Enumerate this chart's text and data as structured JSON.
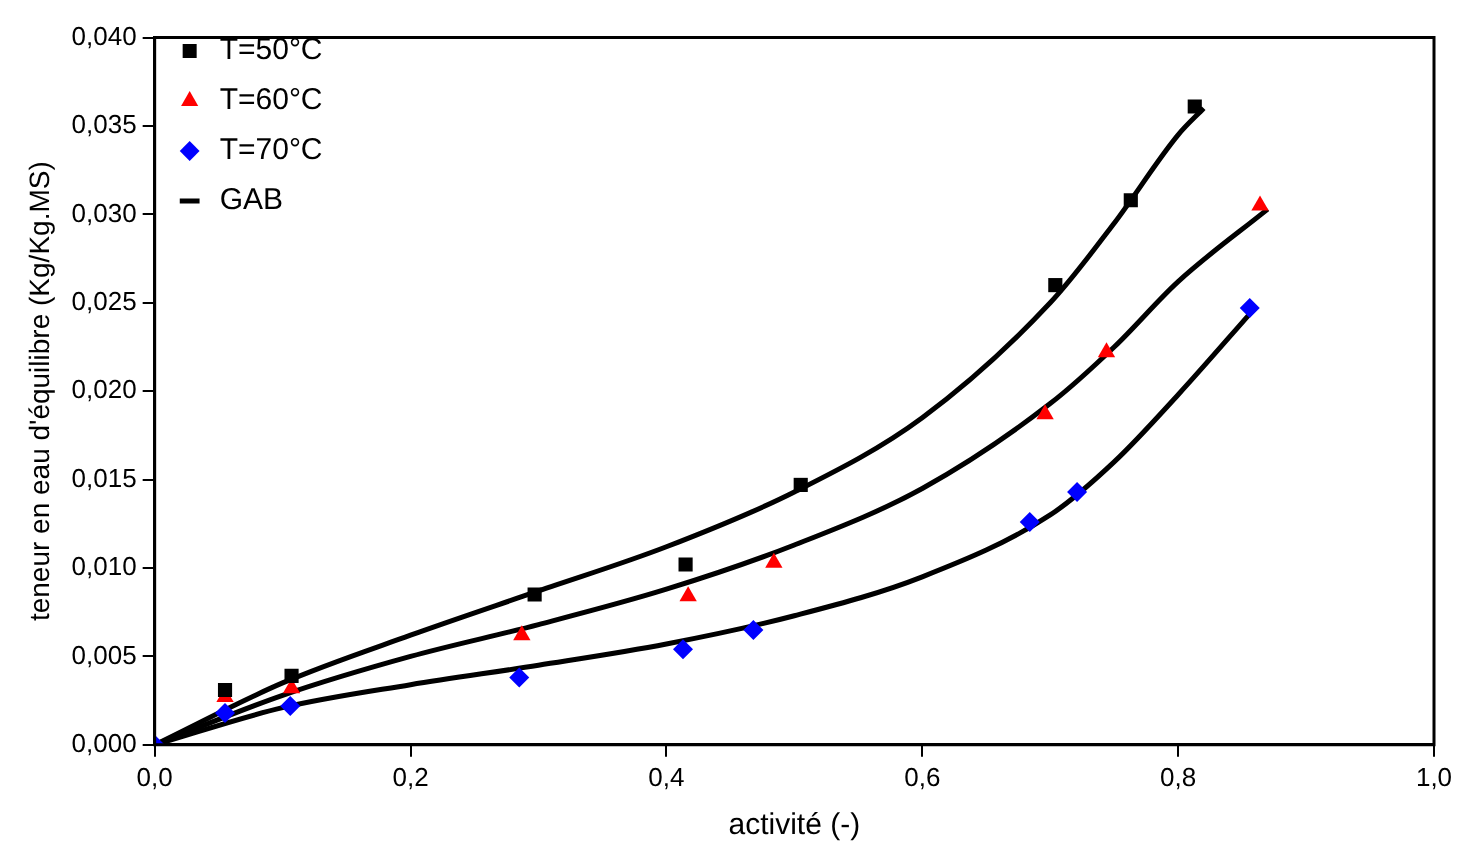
{
  "chart_data": {
    "type": "scatter",
    "xlabel": "activité (-)",
    "ylabel": "teneur en eau d'équilibre (Kg/Kg.MS)",
    "xlim": [
      0,
      1
    ],
    "ylim": [
      0,
      0.04
    ],
    "xticks": [
      {
        "value": 0,
        "label": "0,0"
      },
      {
        "value": 0.2,
        "label": "0,2"
      },
      {
        "value": 0.4,
        "label": "0,4"
      },
      {
        "value": 0.6,
        "label": "0,6"
      },
      {
        "value": 0.8,
        "label": "0,8"
      },
      {
        "value": 1,
        "label": "1,0"
      }
    ],
    "yticks": [
      {
        "value": 0,
        "label": "0,000"
      },
      {
        "value": 0.005,
        "label": "0,005"
      },
      {
        "value": 0.01,
        "label": "0,010"
      },
      {
        "value": 0.015,
        "label": "0,015"
      },
      {
        "value": 0.02,
        "label": "0,020"
      },
      {
        "value": 0.025,
        "label": "0,025"
      },
      {
        "value": 0.03,
        "label": "0,030"
      },
      {
        "value": 0.035,
        "label": "0,035"
      },
      {
        "value": 0.04,
        "label": "0,040"
      }
    ],
    "grid": false,
    "legend": "top left",
    "series": [
      {
        "name": "T=50°C",
        "type": "scatter",
        "marker": "square",
        "color": "#000000",
        "x": [
          0.055,
          0.107,
          0.297,
          0.415,
          0.505,
          0.704,
          0.763,
          0.813
        ],
        "values": [
          0.0031,
          0.0039,
          0.0085,
          0.0102,
          0.0147,
          0.026,
          0.0308,
          0.0361
        ]
      },
      {
        "name": "T=60°C",
        "type": "scatter",
        "marker": "triangle",
        "color": "#ff0000",
        "x": [
          0.055,
          0.107,
          0.287,
          0.417,
          0.484,
          0.696,
          0.744,
          0.864
        ],
        "values": [
          0.0027,
          0.0032,
          0.0062,
          0.0084,
          0.0103,
          0.0187,
          0.0222,
          0.0305
        ]
      },
      {
        "name": "T=70°C",
        "type": "scatter",
        "marker": "diamond",
        "color": "#0000ff",
        "x": [
          0,
          0.055,
          0.106,
          0.285,
          0.413,
          0.468,
          0.684,
          0.721,
          0.856
        ],
        "values": [
          0,
          0.0018,
          0.0022,
          0.0038,
          0.0054,
          0.0065,
          0.0126,
          0.0143,
          0.0247
        ]
      },
      {
        "name": "GAB",
        "type": "line",
        "line_style": "solid",
        "color": "#000000",
        "x": [
          0,
          0.1,
          0.2,
          0.3,
          0.4,
          0.5,
          0.6,
          0.7,
          0.75,
          0.8,
          0.82
        ],
        "values": [
          0,
          0.0035,
          0.0062,
          0.0087,
          0.0112,
          0.0143,
          0.0185,
          0.025,
          0.0295,
          0.0345,
          0.036
        ]
      },
      {
        "type": "line",
        "line_style": "solid",
        "color": "#000000",
        "x": [
          0,
          0.1,
          0.2,
          0.3,
          0.4,
          0.5,
          0.6,
          0.7,
          0.75,
          0.8,
          0.87
        ],
        "values": [
          0,
          0.0028,
          0.005,
          0.0068,
          0.0088,
          0.0113,
          0.0145,
          0.0193,
          0.0225,
          0.0262,
          0.0303
        ]
      },
      {
        "type": "line",
        "line_style": "solid",
        "color": "#000000",
        "x": [
          0,
          0.1,
          0.2,
          0.3,
          0.4,
          0.5,
          0.6,
          0.7,
          0.75,
          0.8,
          0.86
        ],
        "values": [
          0,
          0.0021,
          0.0034,
          0.0045,
          0.0057,
          0.0073,
          0.0095,
          0.013,
          0.016,
          0.0198,
          0.0247
        ]
      }
    ]
  }
}
